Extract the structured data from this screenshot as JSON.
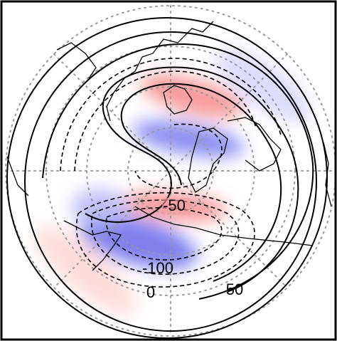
{
  "contour_labels": [
    "-50",
    "-100",
    "0",
    "50"
  ]
}
